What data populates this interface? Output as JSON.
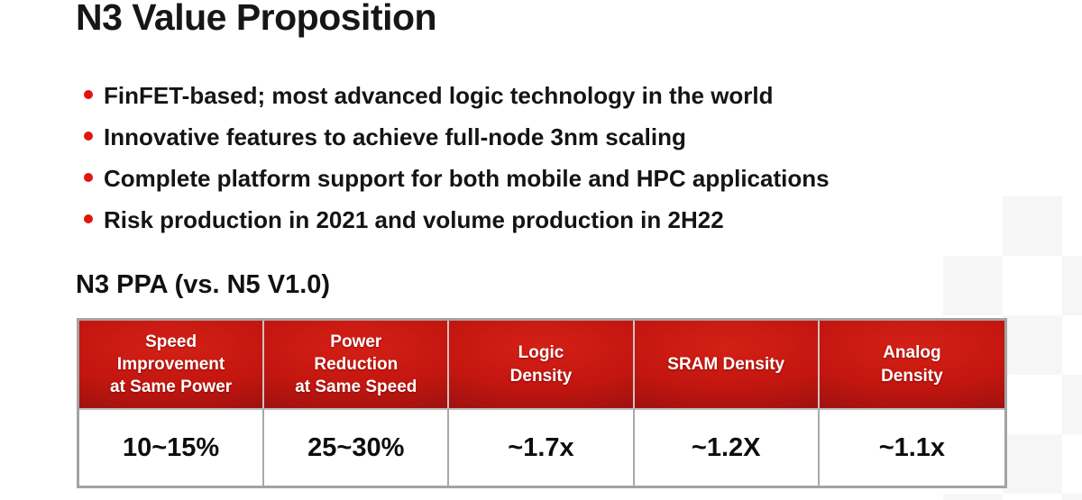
{
  "slide": {
    "title": "N3 Value Proposition",
    "bullets": [
      "FinFET-based; most advanced logic technology in the world",
      "Innovative features to achieve full-node 3nm scaling",
      "Complete platform support for both mobile and HPC applications",
      "Risk production in 2021 and volume production in 2H22"
    ],
    "table_heading": "N3 PPA (vs. N5 V1.0)",
    "ppa_table": {
      "headers": [
        "Speed\nImprovement\nat Same Power",
        "Power\nReduction\nat Same Speed",
        "Logic\nDensity",
        "SRAM Density",
        "Analog\nDensity"
      ],
      "values": [
        "10~15%",
        "25~30%",
        "~1.7x",
        "~1.2X",
        "~1.1x"
      ]
    },
    "colors": {
      "header_red": "#c3160f",
      "bullet_red": "#e0150f",
      "table_border_gray": "#a3a3a3"
    }
  }
}
